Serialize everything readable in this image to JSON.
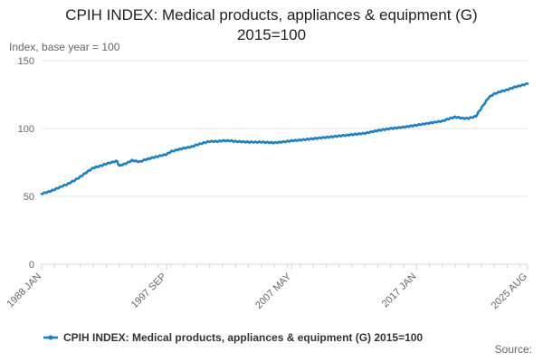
{
  "title_line1": "CPIH INDEX: Medical products, appliances & equipment (G)",
  "title_line2": "2015=100",
  "source": "Source:",
  "colors": {
    "series": "#1f7fbf",
    "grid": "#e6e6e6",
    "axis": "#ccd6eb",
    "text": "#666666"
  },
  "chart_data": {
    "type": "line",
    "title": "CPIH INDEX: Medical products, appliances & equipment (G) 2015=100",
    "ylabel": "Index, base year = 100",
    "xlabel": "",
    "ylim": [
      0,
      150
    ],
    "y_ticks": [
      0,
      50,
      100,
      150
    ],
    "x_range": [
      "1988 JAN",
      "2025 AUG"
    ],
    "x_ticks": [
      "1988 JAN",
      "1997 SEP",
      "2007 MAY",
      "2017 JAN",
      "2025 AUG"
    ],
    "grid": true,
    "legend_position": "bottom",
    "series": [
      {
        "name": "CPIH INDEX: Medical products, appliances & equipment (G) 2015=100",
        "points": [
          [
            "1988 JAN",
            52.0
          ],
          [
            "1988 AUG",
            53.5
          ],
          [
            "1989 JAN",
            55.0
          ],
          [
            "1989 AUG",
            57.5
          ],
          [
            "1990 JAN",
            59.0
          ],
          [
            "1990 AUG",
            62.0
          ],
          [
            "1991 JAN",
            64.5
          ],
          [
            "1991 AUG",
            68.5
          ],
          [
            "1992 JAN",
            71.0
          ],
          [
            "1992 AUG",
            72.5
          ],
          [
            "1993 JAN",
            74.0
          ],
          [
            "1993 AUG",
            75.5
          ],
          [
            "1993 NOV",
            76.0
          ],
          [
            "1994 JAN",
            72.5
          ],
          [
            "1994 AUG",
            74.5
          ],
          [
            "1995 JAN",
            76.5
          ],
          [
            "1995 AUG",
            75.5
          ],
          [
            "1996 JAN",
            77.0
          ],
          [
            "1996 AUG",
            78.5
          ],
          [
            "1997 JAN",
            79.5
          ],
          [
            "1997 SEP",
            81.0
          ],
          [
            "1998 JAN",
            83.0
          ],
          [
            "1998 AUG",
            84.5
          ],
          [
            "1999 JAN",
            85.5
          ],
          [
            "1999 AUG",
            86.5
          ],
          [
            "2000 JAN",
            88.0
          ],
          [
            "2000 AUG",
            89.5
          ],
          [
            "2001 JAN",
            90.5
          ],
          [
            "2001 AUG",
            90.5
          ],
          [
            "2002 JAN",
            91.0
          ],
          [
            "2002 AUG",
            91.0
          ],
          [
            "2003 JAN",
            90.5
          ],
          [
            "2004 JAN",
            90.0
          ],
          [
            "2005 JAN",
            90.0
          ],
          [
            "2006 JAN",
            89.5
          ],
          [
            "2007 JAN",
            90.5
          ],
          [
            "2007 MAY",
            91.0
          ],
          [
            "2008 JAN",
            91.5
          ],
          [
            "2009 JAN",
            92.5
          ],
          [
            "2010 JAN",
            93.5
          ],
          [
            "2011 JAN",
            94.5
          ],
          [
            "2012 JAN",
            95.5
          ],
          [
            "2013 JAN",
            96.5
          ],
          [
            "2014 JAN",
            98.5
          ],
          [
            "2015 JAN",
            100.0
          ],
          [
            "2016 JAN",
            101.0
          ],
          [
            "2017 JAN",
            102.5
          ],
          [
            "2018 JAN",
            104.0
          ],
          [
            "2019 JAN",
            105.5
          ],
          [
            "2019 AUG",
            107.5
          ],
          [
            "2020 JAN",
            108.5
          ],
          [
            "2020 AUG",
            107.5
          ],
          [
            "2021 JAN",
            107.5
          ],
          [
            "2021 AUG",
            109.0
          ],
          [
            "2022 JAN",
            115.0
          ],
          [
            "2022 AUG",
            123.0
          ],
          [
            "2023 JAN",
            125.5
          ],
          [
            "2023 AUG",
            127.5
          ],
          [
            "2024 JAN",
            128.5
          ],
          [
            "2024 AUG",
            130.5
          ],
          [
            "2025 JAN",
            131.5
          ],
          [
            "2025 AUG",
            133.0
          ]
        ]
      }
    ]
  }
}
